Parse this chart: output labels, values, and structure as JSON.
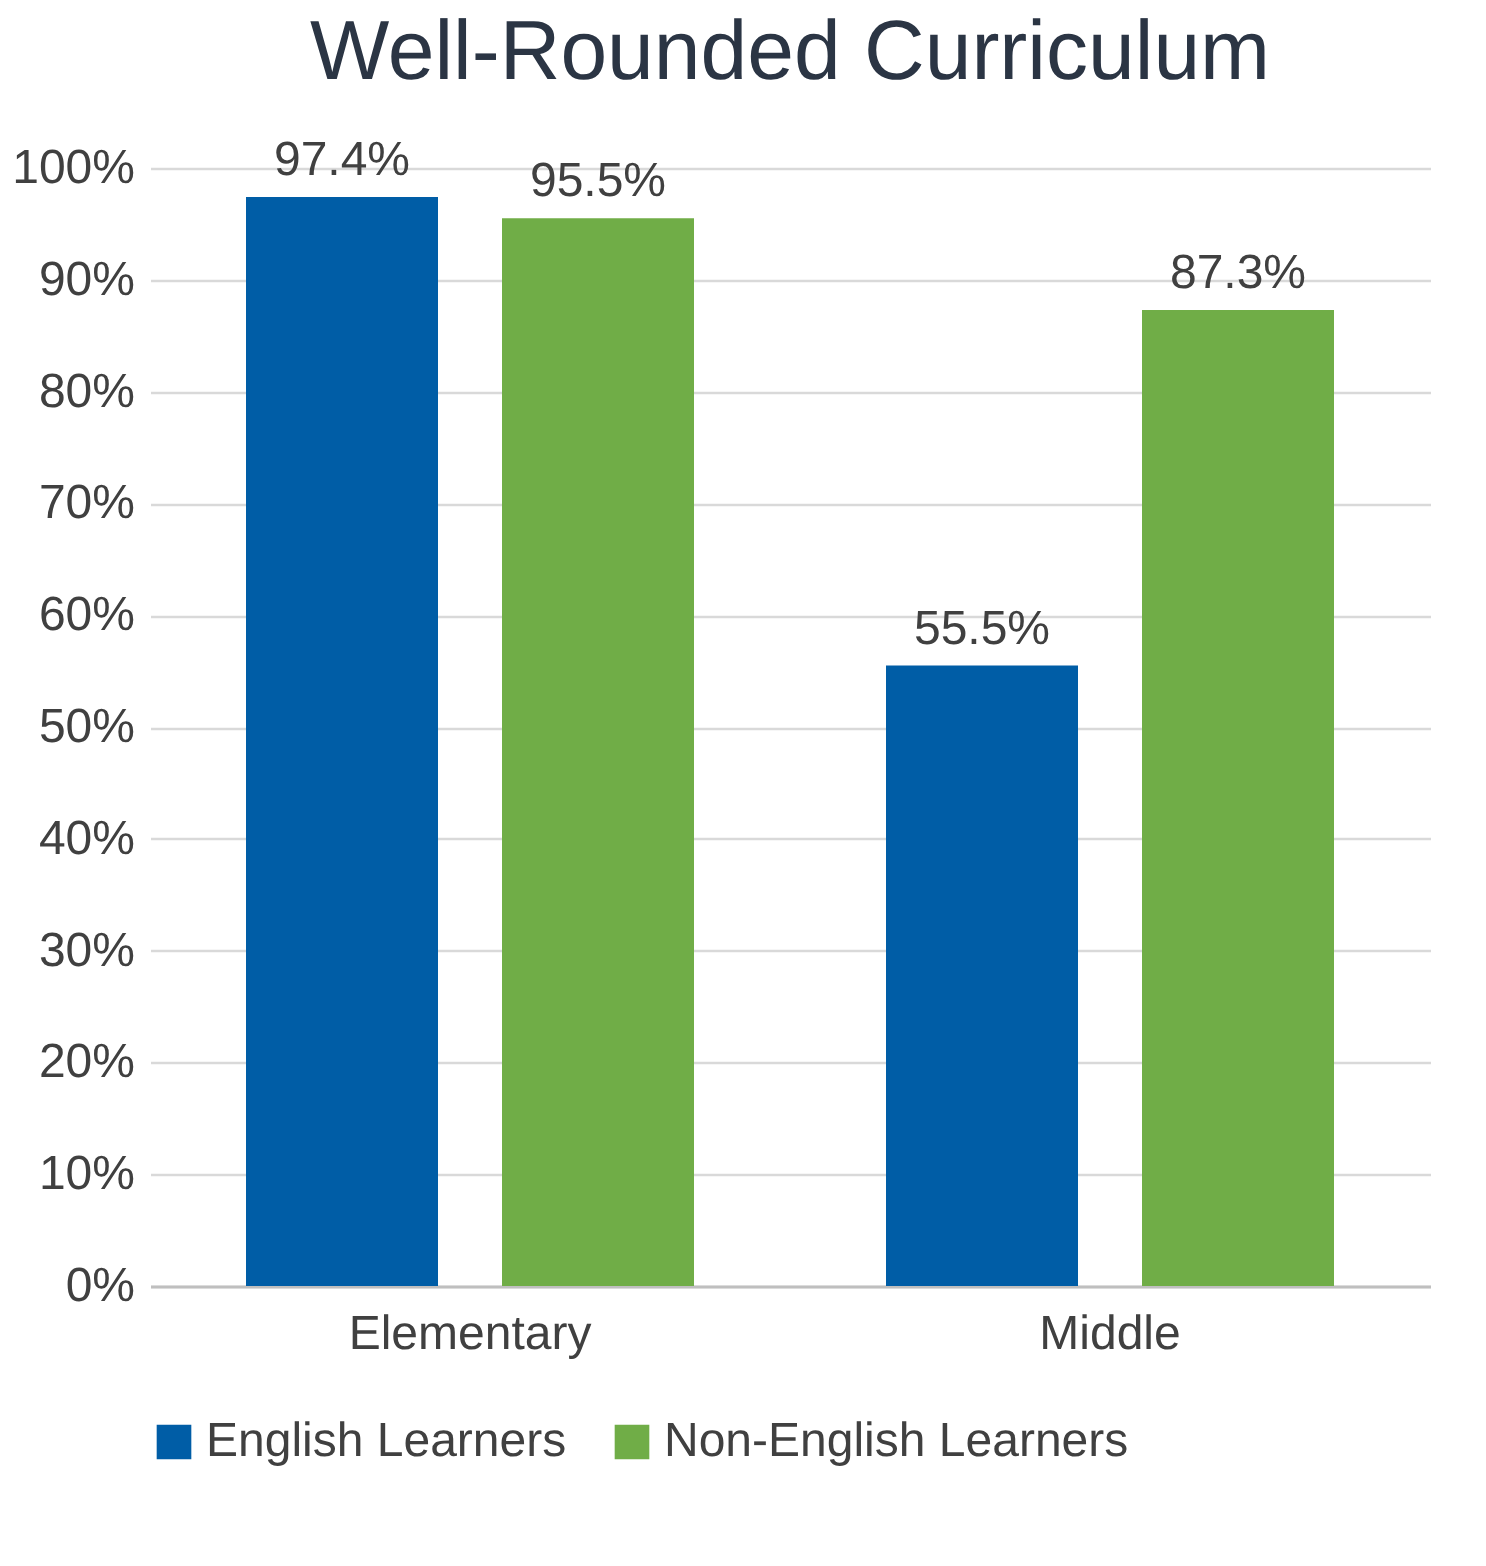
{
  "chart_data": {
    "type": "bar",
    "title": "Well-Rounded Curriculum",
    "categories": [
      "Elementary",
      "Middle"
    ],
    "series": [
      {
        "name": "English Learners",
        "color": "#005da6",
        "values": [
          97.4,
          55.5
        ],
        "value_labels": [
          "97.4%",
          "55.5%"
        ]
      },
      {
        "name": "Non-English Learners",
        "color": "#70ad47",
        "values": [
          95.5,
          87.3
        ],
        "value_labels": [
          "95.5%",
          "87.3%"
        ]
      }
    ],
    "ylim": [
      0,
      100
    ],
    "yticks": [
      {
        "value": 0,
        "label": "0%"
      },
      {
        "value": 10,
        "label": "10%"
      },
      {
        "value": 20,
        "label": "20%"
      },
      {
        "value": 30,
        "label": "30%"
      },
      {
        "value": 40,
        "label": "40%"
      },
      {
        "value": 50,
        "label": "50%"
      },
      {
        "value": 60,
        "label": "60%"
      },
      {
        "value": 70,
        "label": "70%"
      },
      {
        "value": 80,
        "label": "80%"
      },
      {
        "value": 90,
        "label": "90%"
      },
      {
        "value": 100,
        "label": "100%"
      }
    ],
    "grid": "y",
    "legend": "bottom"
  }
}
